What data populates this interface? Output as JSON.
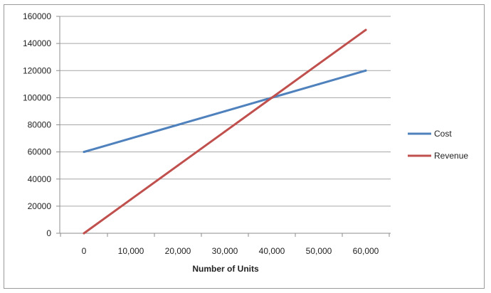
{
  "chart_data": {
    "type": "line",
    "title": "",
    "xlabel": "Number of Units",
    "ylabel": "",
    "categories": [
      "0",
      "10,000",
      "20,000",
      "30,000",
      "40,000",
      "50,000",
      "60,000"
    ],
    "x": [
      0,
      10000,
      20000,
      30000,
      40000,
      50000,
      60000
    ],
    "ylim": [
      0,
      160000
    ],
    "yticks": [
      "0",
      "20000",
      "40000",
      "60000",
      "80000",
      "100000",
      "120000",
      "140000",
      "160000"
    ],
    "grid": "horizontal",
    "legend_position": "right",
    "series": [
      {
        "name": "Cost",
        "color": "#4F81BD",
        "values": [
          60000,
          70000,
          80000,
          90000,
          100000,
          110000,
          120000
        ]
      },
      {
        "name": "Revenue",
        "color": "#C0504D",
        "values": [
          0,
          25000,
          50000,
          75000,
          100000,
          125000,
          150000
        ]
      }
    ]
  }
}
